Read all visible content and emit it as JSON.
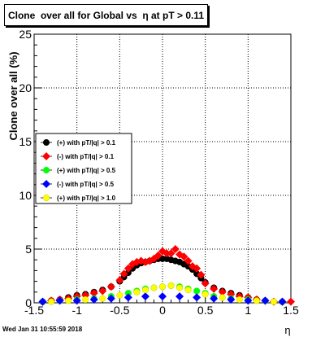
{
  "chart_data": {
    "type": "scatter",
    "title": "Clone  over all for Global vs  η at pT > 0.11",
    "xlabel": "η",
    "ylabel": "Clone  over all (%)",
    "xlim": [
      -1.5,
      1.5
    ],
    "ylim": [
      0,
      25
    ],
    "x_ticks": [
      "-1.5",
      "-1",
      "-0.5",
      "0",
      "0.5",
      "1",
      "1.5"
    ],
    "y_ticks": [
      "0",
      "5",
      "10",
      "15",
      "20",
      "25"
    ],
    "grid": true,
    "legend_position": "left",
    "series": [
      {
        "name": "(+) with pT/|q| > 0.1",
        "color": "#000000",
        "x": [
          -1.4,
          -1.3,
          -1.2,
          -1.1,
          -1.0,
          -0.9,
          -0.8,
          -0.7,
          -0.6,
          -0.5,
          -0.45,
          -0.4,
          -0.35,
          -0.3,
          -0.25,
          -0.2,
          -0.15,
          -0.1,
          -0.05,
          0.0,
          0.05,
          0.1,
          0.15,
          0.2,
          0.25,
          0.3,
          0.35,
          0.4,
          0.45,
          0.5,
          0.6,
          0.7,
          0.8,
          0.9,
          1.0,
          1.1,
          1.2,
          1.3,
          1.4
        ],
        "y": [
          0.1,
          0.2,
          0.3,
          0.5,
          0.7,
          0.8,
          1.0,
          1.2,
          1.5,
          2.0,
          2.4,
          2.8,
          3.2,
          3.5,
          3.7,
          3.8,
          3.9,
          4.0,
          4.1,
          4.1,
          4.1,
          4.0,
          3.9,
          3.8,
          3.6,
          3.4,
          3.1,
          2.7,
          2.3,
          1.9,
          1.4,
          1.1,
          0.9,
          0.7,
          0.5,
          0.3,
          0.2,
          0.1,
          0.1
        ]
      },
      {
        "name": "(-) with pT/|q| > 0.1",
        "color": "#ff0000",
        "x": [
          -1.4,
          -1.3,
          -1.2,
          -1.1,
          -1.0,
          -0.9,
          -0.8,
          -0.7,
          -0.6,
          -0.5,
          -0.45,
          -0.4,
          -0.35,
          -0.3,
          -0.25,
          -0.2,
          -0.15,
          -0.1,
          -0.05,
          0.0,
          0.05,
          0.1,
          0.15,
          0.2,
          0.25,
          0.3,
          0.35,
          0.4,
          0.45,
          0.5,
          0.6,
          0.7,
          0.8,
          0.9,
          1.0,
          1.1,
          1.2,
          1.3,
          1.4,
          1.5
        ],
        "y": [
          0.1,
          0.2,
          0.3,
          0.4,
          0.6,
          0.7,
          0.9,
          1.1,
          1.5,
          2.1,
          2.7,
          3.2,
          3.6,
          3.8,
          3.9,
          3.8,
          3.9,
          4.1,
          4.4,
          4.8,
          4.6,
          4.6,
          5.0,
          4.5,
          4.3,
          3.9,
          3.4,
          3.2,
          2.6,
          1.8,
          1.3,
          1.0,
          0.8,
          0.6,
          0.5,
          0.3,
          0.2,
          0.1,
          0.1,
          0.1
        ]
      },
      {
        "name": "(+) with pT/|q| > 0.5",
        "color": "#00ff00",
        "x": [
          -1.4,
          -1.2,
          -1.0,
          -0.8,
          -0.6,
          -0.4,
          -0.3,
          -0.2,
          -0.1,
          0.0,
          0.1,
          0.2,
          0.3,
          0.4,
          0.5,
          0.6,
          0.8,
          1.0,
          1.2,
          1.4
        ],
        "y": [
          0.1,
          0.2,
          0.3,
          0.4,
          0.6,
          0.9,
          1.1,
          1.3,
          1.4,
          1.5,
          1.6,
          1.5,
          1.3,
          1.1,
          0.9,
          0.6,
          0.4,
          0.3,
          0.2,
          0.1
        ]
      },
      {
        "name": "(-) with pT/|q| > 0.5",
        "color": "#0000ff",
        "x": [
          -1.4,
          -1.2,
          -1.0,
          -0.8,
          -0.6,
          -0.4,
          -0.2,
          0.0,
          0.2,
          0.4,
          0.6,
          0.8,
          1.0,
          1.2,
          1.4
        ],
        "y": [
          0.1,
          0.2,
          0.2,
          0.3,
          0.4,
          0.5,
          0.6,
          0.6,
          0.6,
          0.5,
          0.4,
          0.3,
          0.2,
          0.2,
          0.1
        ]
      },
      {
        "name": "(+) with pT/|q| > 1.0",
        "color": "#ffff00",
        "x": [
          -1.3,
          -1.1,
          -0.9,
          -0.7,
          -0.5,
          -0.3,
          -0.2,
          -0.1,
          0.0,
          0.1,
          0.2,
          0.3,
          0.5,
          0.7,
          0.9,
          1.1,
          1.3
        ],
        "y": [
          0.1,
          0.2,
          0.3,
          0.4,
          0.7,
          1.0,
          1.2,
          1.4,
          1.5,
          1.6,
          1.4,
          1.2,
          0.8,
          0.5,
          0.3,
          0.2,
          0.1
        ]
      }
    ]
  },
  "footer": {
    "timestamp": "Wed Jan 31 10:55:59 2018"
  }
}
